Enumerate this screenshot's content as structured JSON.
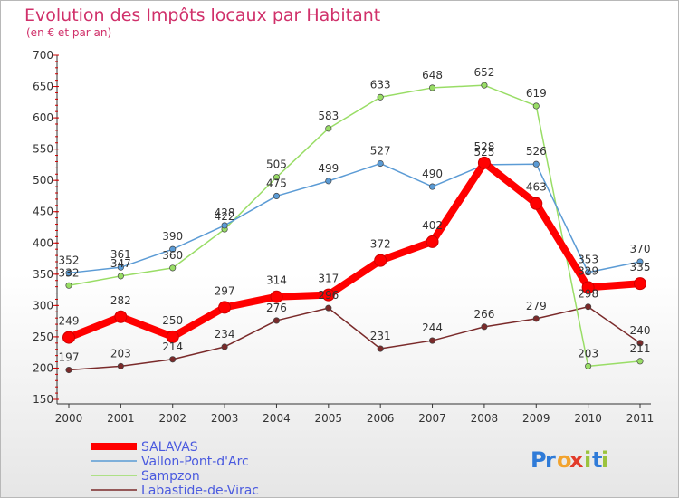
{
  "chart_data": {
    "type": "line",
    "title": "Evolution des Impôts locaux par Habitant",
    "subtitle": "(en € et par an)",
    "xlabel": "",
    "ylabel": "",
    "x": [
      "2000",
      "2001",
      "2002",
      "2003",
      "2004",
      "2005",
      "2006",
      "2007",
      "2008",
      "2009",
      "2010",
      "2011"
    ],
    "ylim": [
      150,
      700
    ],
    "yticks": [
      150,
      200,
      250,
      300,
      350,
      400,
      450,
      500,
      550,
      600,
      650,
      700
    ],
    "grid": false,
    "legend_position": "bottom-left",
    "series": [
      {
        "name": "SALAVAS",
        "color": "#ff0000",
        "values": [
          249,
          282,
          250,
          297,
          314,
          317,
          372,
          402,
          528,
          463,
          329,
          335
        ]
      },
      {
        "name": "Vallon-Pont-d'Arc",
        "color": "#5b9bd5",
        "values": [
          352,
          361,
          390,
          428,
          475,
          499,
          527,
          490,
          525,
          526,
          353,
          370
        ]
      },
      {
        "name": "Sampzon",
        "color": "#99dd66",
        "values": [
          332,
          347,
          360,
          422,
          505,
          583,
          633,
          648,
          652,
          619,
          203,
          211
        ]
      },
      {
        "name": "Labastide-de-Virac",
        "color": "#7a2a2a",
        "values": [
          197,
          203,
          214,
          234,
          276,
          296,
          231,
          244,
          266,
          279,
          298,
          240
        ]
      }
    ]
  },
  "logo": {
    "text": "Proxiti"
  }
}
